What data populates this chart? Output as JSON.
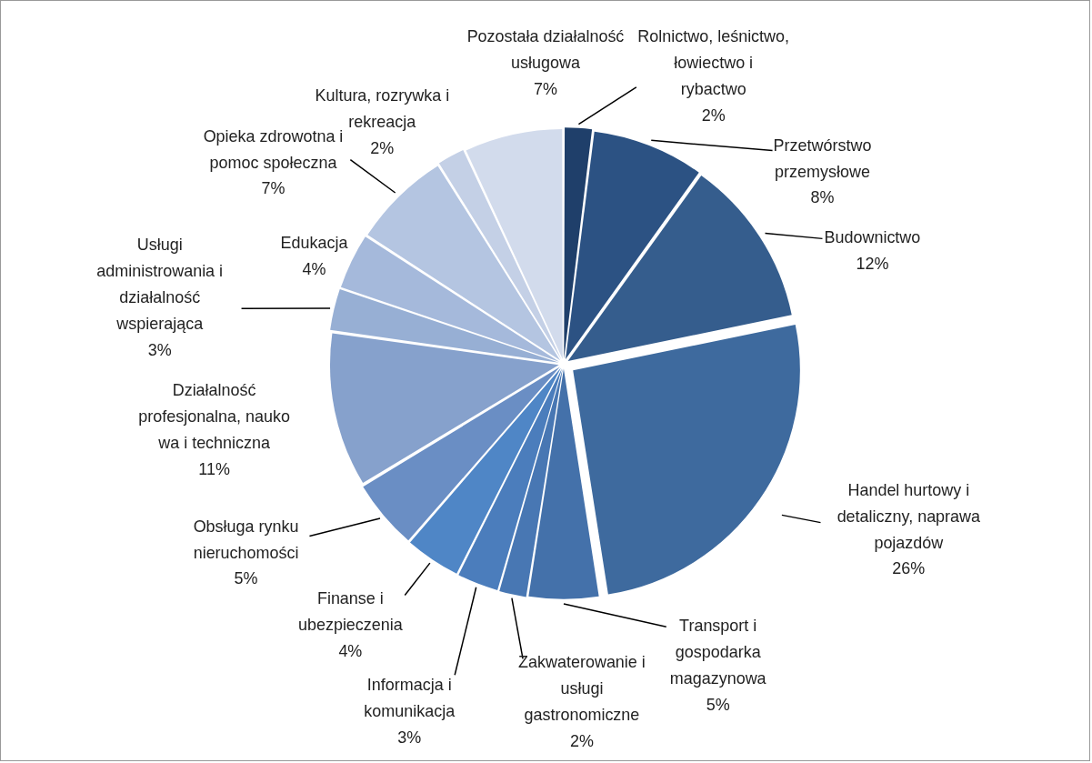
{
  "chart_data": {
    "type": "pie",
    "categories": [
      "Rolnictwo, leśnictwo,\nłowiectwo i\nrybactwo",
      "Przetwórstwo\nprzemysłowe",
      "Budownictwo",
      "Handel hurtowy i\ndetaliczny, naprawa\npojazdów",
      "Transport i\ngospodarka\nmagazynowa",
      "Zakwaterowanie i\nusługi\ngastronomiczne",
      "Informacja i\nkomunikacja",
      "Finanse i\nubezpieczenia",
      "Obsługa rynku\nnieruchomości",
      "Działalność\nprofesjonalna, nauko\nwa i techniczna",
      "Usługi\nadministrowania i\ndziałalność\nwspierająca",
      "Edukacja",
      "Opieka zdrowotna i\npomoc społeczna",
      "Kultura, rozrywka i\nrekreacja",
      "Pozostała działalność\nusługowa"
    ],
    "values": [
      2,
      8,
      12,
      26,
      5,
      2,
      3,
      4,
      5,
      11,
      3,
      4,
      7,
      2,
      7
    ],
    "value_labels": [
      "2%",
      "8%",
      "12%",
      "26%",
      "5%",
      "2%",
      "3%",
      "4%",
      "5%",
      "11%",
      "3%",
      "4%",
      "7%",
      "2%",
      "7%"
    ],
    "colors": [
      "#1f3f6a",
      "#2c5283",
      "#355d8d",
      "#3e6a9e",
      "#4471aa",
      "#4877b3",
      "#4b7dbc",
      "#4f86c6",
      "#6a8ec4",
      "#86a1cc",
      "#97afd4",
      "#a5b9db",
      "#b4c5e1",
      "#c4d0e6",
      "#d2dbec"
    ]
  }
}
